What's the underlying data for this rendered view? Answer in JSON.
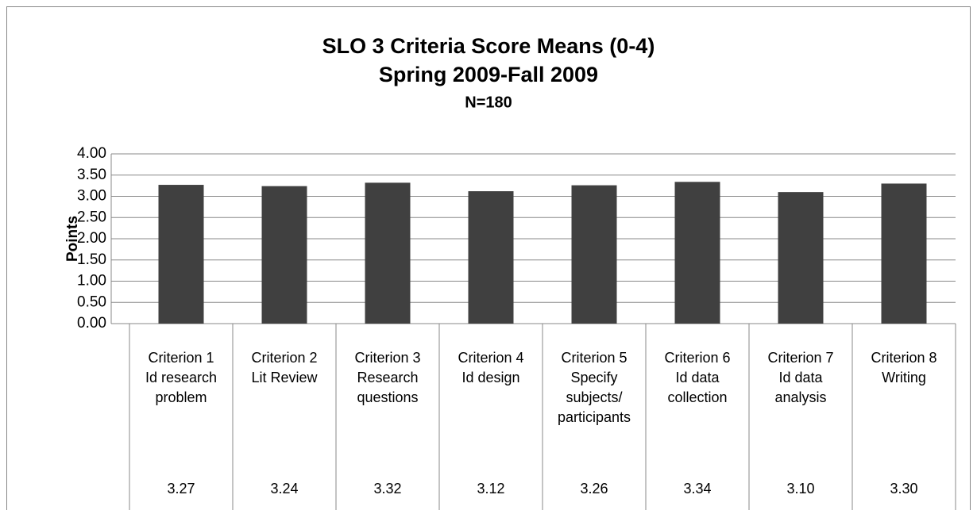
{
  "chart_data": {
    "type": "bar",
    "title": "SLO 3 Criteria Score Means (0-4)",
    "subtitle": "Spring 2009-Fall 2009",
    "note": "N=180",
    "y_label": "Points",
    "categories": [
      [
        "Criterion 1",
        "Id research",
        "problem"
      ],
      [
        "Criterion 2",
        "Lit Review"
      ],
      [
        "Criterion 3",
        "Research",
        "questions"
      ],
      [
        "Criterion 4",
        "Id design"
      ],
      [
        "Criterion 5",
        "Specify",
        "subjects/",
        "participants"
      ],
      [
        "Criterion 6",
        "Id data",
        "collection"
      ],
      [
        "Criterion 7",
        "Id data",
        "analysis"
      ],
      [
        "Criterion 8",
        "Writing"
      ]
    ],
    "values": [
      3.27,
      3.24,
      3.32,
      3.12,
      3.26,
      3.34,
      3.1,
      3.3
    ],
    "value_labels": [
      "3.27",
      "3.24",
      "3.32",
      "3.12",
      "3.26",
      "3.34",
      "3.10",
      "3.30"
    ],
    "color": "#404040",
    "ylim": [
      0,
      4
    ],
    "yticks": [
      {
        "value": 0,
        "label": "0.00"
      },
      {
        "value": 0.5,
        "label": "0.50"
      },
      {
        "value": 1,
        "label": "1.00"
      },
      {
        "value": 1.5,
        "label": "1.50"
      },
      {
        "value": 2,
        "label": "2.00"
      },
      {
        "value": 2.5,
        "label": "2.50"
      },
      {
        "value": 3,
        "label": "3.00"
      },
      {
        "value": 3.5,
        "label": "3.50"
      },
      {
        "value": 4,
        "label": "4.00"
      }
    ],
    "grid": true
  }
}
